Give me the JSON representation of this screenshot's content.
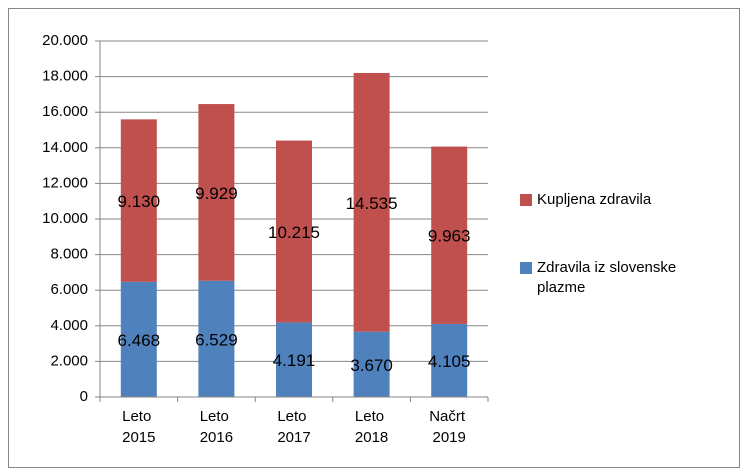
{
  "chart_data": {
    "type": "bar",
    "stacked": true,
    "categories": [
      "Leto 2015",
      "Leto 2016",
      "Leto 2017",
      "Leto 2018",
      "Načrt 2019"
    ],
    "series": [
      {
        "name": "Zdravila iz slovenske plazme",
        "color": "#4f81bd",
        "values": [
          6468,
          6529,
          4191,
          3670,
          4105
        ],
        "value_labels": [
          "6.468",
          "6.529",
          "4.191",
          "3.670",
          "4.105"
        ]
      },
      {
        "name": "Kupljena zdravila",
        "color": "#c0504d",
        "values": [
          9130,
          9929,
          10215,
          14535,
          9963
        ],
        "value_labels": [
          "9.130",
          "9.929",
          "10.215",
          "14.535",
          "9.963"
        ]
      }
    ],
    "ylim": [
      0,
      20000
    ],
    "yticks": [
      0,
      {
        "value": 2000,
        "label": "2.000"
      },
      {
        "value": 4000,
        "label": "4.000"
      },
      {
        "value": 6000,
        "label": "6.000"
      },
      {
        "value": 8000,
        "label": "8.000"
      },
      {
        "value": 10000,
        "label": "10.000"
      },
      {
        "value": 12000,
        "label": "12.000"
      },
      {
        "value": 14000,
        "label": "14.000"
      },
      {
        "value": 16000,
        "label": "16.000"
      },
      {
        "value": 18000,
        "label": "18.000"
      },
      {
        "value": 20000,
        "label": "20.000"
      }
    ],
    "grid": true,
    "legend": "right"
  }
}
